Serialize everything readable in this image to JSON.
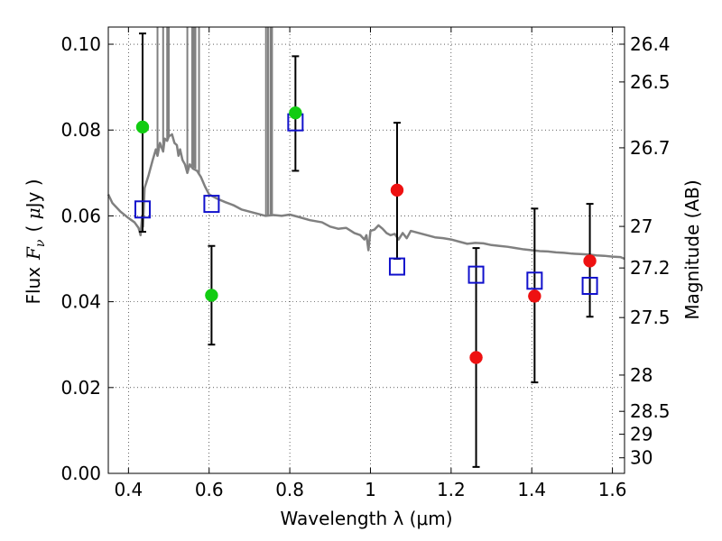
{
  "chart_data": {
    "type": "scatter",
    "xlabel": "Wavelength  λ (μm)",
    "ylabel_prefix": "Flux",
    "ylabel_symbol": "F",
    "ylabel_symbol_sub": "ν",
    "ylabel_units_open": "( ",
    "ylabel_units_mu": "μ",
    "ylabel_units_rest": "Jy )",
    "y2label": "Magnitude (AB)",
    "xlim": [
      0.35,
      1.63
    ],
    "ylim": [
      0.0,
      0.104
    ],
    "grid": true,
    "x_ticks": [
      {
        "value": 0.4,
        "label": "0.4"
      },
      {
        "value": 0.6,
        "label": "0.6"
      },
      {
        "value": 0.8,
        "label": "0.8"
      },
      {
        "value": 1.0,
        "label": "1"
      },
      {
        "value": 1.2,
        "label": "1.2"
      },
      {
        "value": 1.4,
        "label": "1.4"
      },
      {
        "value": 1.6,
        "label": "1.6"
      }
    ],
    "y_ticks": [
      {
        "value": 0.0,
        "label": "0.00"
      },
      {
        "value": 0.02,
        "label": "0.02"
      },
      {
        "value": 0.04,
        "label": "0.04"
      },
      {
        "value": 0.06,
        "label": "0.06"
      },
      {
        "value": 0.08,
        "label": "0.08"
      },
      {
        "value": 0.1,
        "label": "0.10"
      }
    ],
    "mag_ticks": [
      {
        "value": 26.4,
        "label": "26.4"
      },
      {
        "value": 26.5,
        "label": "26.5"
      },
      {
        "value": 26.7,
        "label": "26.7"
      },
      {
        "value": 27.0,
        "label": "27"
      },
      {
        "value": 27.2,
        "label": "27.2"
      },
      {
        "value": 27.5,
        "label": "27.5"
      },
      {
        "value": 28.0,
        "label": "28"
      },
      {
        "value": 28.5,
        "label": "28.5"
      },
      {
        "value": 29.0,
        "label": "29"
      },
      {
        "value": 30.0,
        "label": "30"
      }
    ],
    "series": [
      {
        "name": "observed (green)",
        "marker": "circle",
        "color": "#11cc11",
        "points": [
          {
            "x": 0.435,
            "y": 0.0807,
            "err_lo": 0.0563,
            "err_hi": 0.1025
          },
          {
            "x": 0.606,
            "y": 0.0415,
            "err_lo": 0.03,
            "err_hi": 0.053
          },
          {
            "x": 0.814,
            "y": 0.084,
            "err_lo": 0.0705,
            "err_hi": 0.0972
          }
        ]
      },
      {
        "name": "observed (red)",
        "marker": "circle",
        "color": "#ee1111",
        "points": [
          {
            "x": 1.066,
            "y": 0.066,
            "err_lo": 0.05,
            "err_hi": 0.0817
          },
          {
            "x": 1.262,
            "y": 0.027,
            "err_lo": 0.0015,
            "err_hi": 0.0525
          },
          {
            "x": 1.407,
            "y": 0.0413,
            "err_lo": 0.0212,
            "err_hi": 0.0617
          },
          {
            "x": 1.544,
            "y": 0.0495,
            "err_lo": 0.0365,
            "err_hi": 0.0628
          }
        ]
      },
      {
        "name": "model photometry",
        "marker": "square-open",
        "color": "#1111cc",
        "points": [
          {
            "x": 0.435,
            "y": 0.0615
          },
          {
            "x": 0.606,
            "y": 0.0628
          },
          {
            "x": 0.814,
            "y": 0.0818
          },
          {
            "x": 1.066,
            "y": 0.0482
          },
          {
            "x": 1.262,
            "y": 0.0463
          },
          {
            "x": 1.407,
            "y": 0.0449
          },
          {
            "x": 1.544,
            "y": 0.0437
          }
        ]
      },
      {
        "name": "model spectrum",
        "marker": "line",
        "color": "#808080",
        "points": [
          [
            0.35,
            0.065
          ],
          [
            0.36,
            0.063
          ],
          [
            0.38,
            0.061
          ],
          [
            0.4,
            0.0595
          ],
          [
            0.415,
            0.0585
          ],
          [
            0.425,
            0.0572
          ],
          [
            0.43,
            0.0555
          ],
          [
            0.434,
            0.06
          ],
          [
            0.436,
            0.0575
          ],
          [
            0.44,
            0.0665
          ],
          [
            0.45,
            0.0695
          ],
          [
            0.46,
            0.073
          ],
          [
            0.468,
            0.0755
          ],
          [
            0.472,
            0.074
          ],
          [
            0.478,
            0.077
          ],
          [
            0.486,
            0.075
          ],
          [
            0.49,
            0.078
          ],
          [
            0.496,
            0.0775
          ],
          [
            0.5,
            0.0785
          ],
          [
            0.508,
            0.079
          ],
          [
            0.514,
            0.077
          ],
          [
            0.52,
            0.0765
          ],
          [
            0.524,
            0.074
          ],
          [
            0.528,
            0.0755
          ],
          [
            0.534,
            0.073
          ],
          [
            0.54,
            0.072
          ],
          [
            0.546,
            0.07
          ],
          [
            0.552,
            0.072
          ],
          [
            0.56,
            0.071
          ],
          [
            0.57,
            0.0705
          ],
          [
            0.58,
            0.069
          ],
          [
            0.59,
            0.0668
          ],
          [
            0.6,
            0.065
          ],
          [
            0.62,
            0.064
          ],
          [
            0.64,
            0.0632
          ],
          [
            0.66,
            0.0625
          ],
          [
            0.68,
            0.0615
          ],
          [
            0.7,
            0.061
          ],
          [
            0.72,
            0.0605
          ],
          [
            0.74,
            0.06
          ],
          [
            0.76,
            0.0602
          ],
          [
            0.78,
            0.06
          ],
          [
            0.8,
            0.0603
          ],
          [
            0.82,
            0.0598
          ],
          [
            0.85,
            0.059
          ],
          [
            0.88,
            0.0585
          ],
          [
            0.9,
            0.0575
          ],
          [
            0.92,
            0.057
          ],
          [
            0.94,
            0.0572
          ],
          [
            0.96,
            0.056
          ],
          [
            0.975,
            0.0555
          ],
          [
            0.985,
            0.0545
          ],
          [
            0.99,
            0.0555
          ],
          [
            0.995,
            0.052
          ],
          [
            1.0,
            0.0565
          ],
          [
            1.01,
            0.0568
          ],
          [
            1.02,
            0.0578
          ],
          [
            1.03,
            0.057
          ],
          [
            1.04,
            0.056
          ],
          [
            1.05,
            0.0555
          ],
          [
            1.06,
            0.0558
          ],
          [
            1.07,
            0.0545
          ],
          [
            1.08,
            0.056
          ],
          [
            1.09,
            0.0548
          ],
          [
            1.1,
            0.0565
          ],
          [
            1.12,
            0.056
          ],
          [
            1.14,
            0.0555
          ],
          [
            1.16,
            0.055
          ],
          [
            1.18,
            0.0548
          ],
          [
            1.2,
            0.0545
          ],
          [
            1.22,
            0.054
          ],
          [
            1.24,
            0.0535
          ],
          [
            1.26,
            0.0537
          ],
          [
            1.28,
            0.0536
          ],
          [
            1.3,
            0.0532
          ],
          [
            1.32,
            0.053
          ],
          [
            1.34,
            0.0528
          ],
          [
            1.36,
            0.0525
          ],
          [
            1.38,
            0.0522
          ],
          [
            1.4,
            0.052
          ],
          [
            1.42,
            0.0518
          ],
          [
            1.44,
            0.0517
          ],
          [
            1.46,
            0.0515
          ],
          [
            1.48,
            0.0514
          ],
          [
            1.5,
            0.0512
          ],
          [
            1.52,
            0.0511
          ],
          [
            1.54,
            0.051
          ],
          [
            1.56,
            0.0508
          ],
          [
            1.58,
            0.0507
          ],
          [
            1.6,
            0.0505
          ],
          [
            1.62,
            0.0504
          ],
          [
            1.63,
            0.05
          ]
        ],
        "spikes": [
          {
            "x": 0.472,
            "y_base": 0.074,
            "y_top": 0.104
          },
          {
            "x": 0.486,
            "y_base": 0.075,
            "y_top": 0.104
          },
          {
            "x": 0.496,
            "y_base": 0.0775,
            "y_top": 0.104
          },
          {
            "x": 0.5,
            "y_base": 0.0785,
            "y_top": 0.104
          },
          {
            "x": 0.546,
            "y_base": 0.07,
            "y_top": 0.104
          },
          {
            "x": 0.558,
            "y_base": 0.0715,
            "y_top": 0.104
          },
          {
            "x": 0.562,
            "y_base": 0.0712,
            "y_top": 0.104
          },
          {
            "x": 0.566,
            "y_base": 0.071,
            "y_top": 0.104
          },
          {
            "x": 0.575,
            "y_base": 0.07,
            "y_top": 0.104
          },
          {
            "x": 0.741,
            "y_base": 0.06,
            "y_top": 0.104
          },
          {
            "x": 0.746,
            "y_base": 0.06,
            "y_top": 0.104
          },
          {
            "x": 0.752,
            "y_base": 0.0601,
            "y_top": 0.104
          },
          {
            "x": 0.756,
            "y_base": 0.0602,
            "y_top": 0.104
          }
        ]
      }
    ]
  }
}
